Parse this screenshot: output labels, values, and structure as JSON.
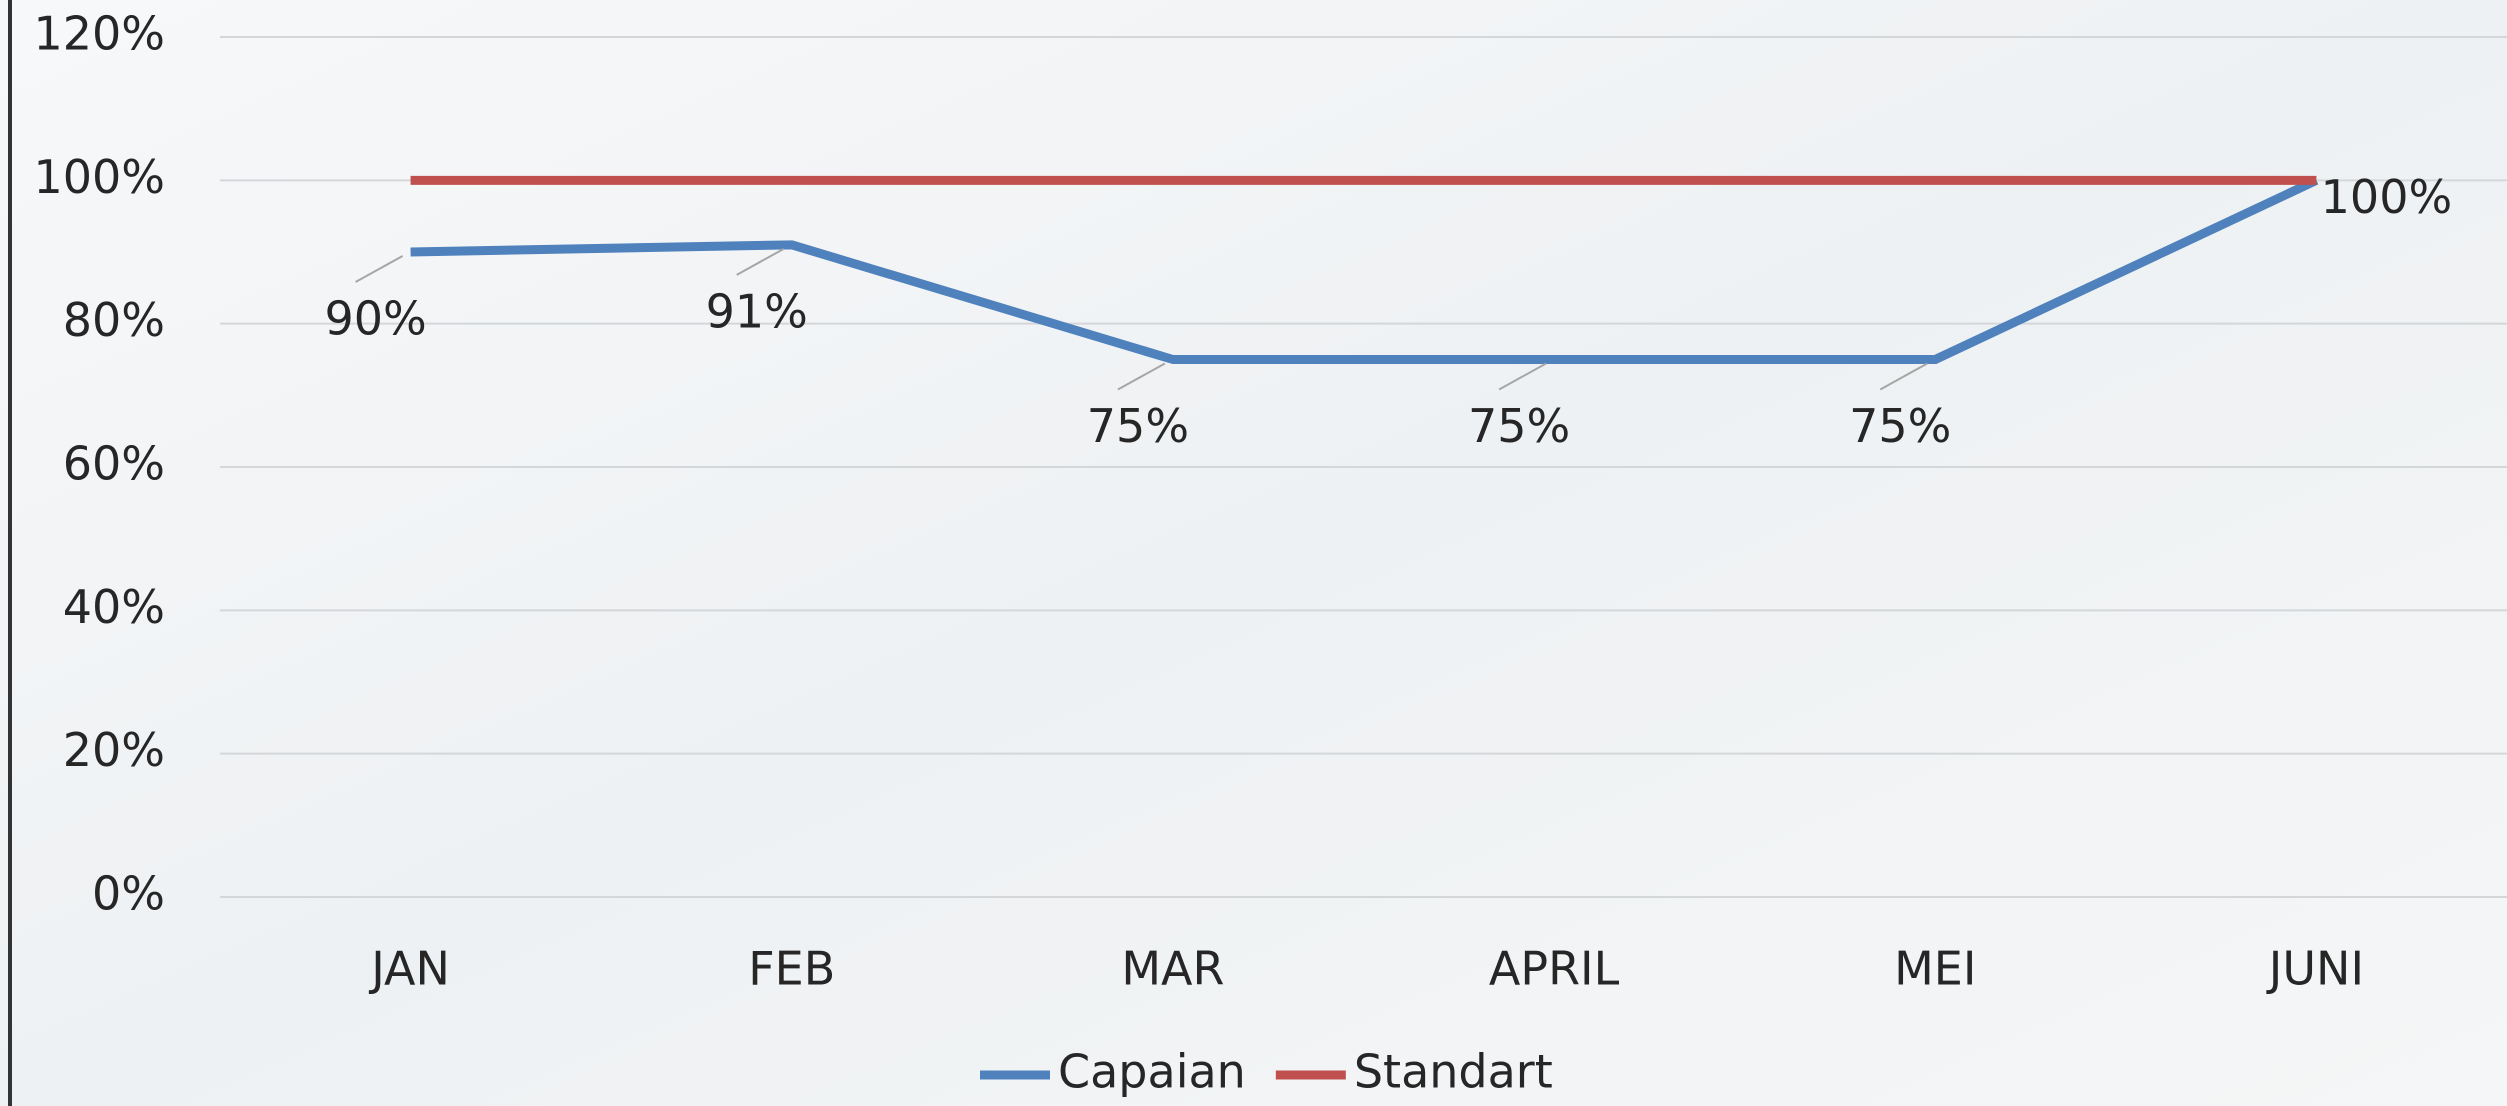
{
  "chart_data": {
    "type": "line",
    "categories": [
      "JAN",
      "FEB",
      "MAR",
      "APRIL",
      "MEI",
      "JUNI"
    ],
    "series": [
      {
        "name": "Capaian",
        "color": "#4f81bd",
        "values": [
          90,
          91,
          75,
          75,
          75,
          100
        ],
        "value_labels": [
          "90%",
          "91%",
          "75%",
          "75%",
          "75%",
          "100%"
        ]
      },
      {
        "name": "Standart",
        "color": "#c0504d",
        "values": [
          100,
          100,
          100,
          100,
          100,
          100
        ]
      }
    ],
    "ylim": [
      0,
      120
    ],
    "yticks": [
      {
        "value": 0,
        "label": "0%"
      },
      {
        "value": 20,
        "label": "20%"
      },
      {
        "value": 40,
        "label": "40%"
      },
      {
        "value": 60,
        "label": "60%"
      },
      {
        "value": 80,
        "label": "80%"
      },
      {
        "value": 100,
        "label": "100%"
      },
      {
        "value": 120,
        "label": "120%"
      }
    ],
    "grid": true,
    "legend": "bottom"
  }
}
